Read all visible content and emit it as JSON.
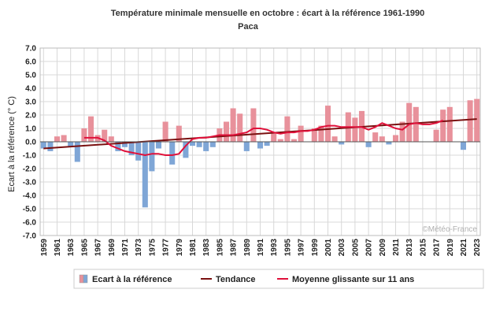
{
  "chart_data": {
    "type": "bar",
    "title": "Température minimale mensuelle en octobre : écart à la référence 1961-1990",
    "subtitle": "Paca",
    "ylabel": "Ecart à la référence (° C)",
    "xlabel": "",
    "ylim": [
      -7.0,
      7.0
    ],
    "y_ticks": [
      "7.0",
      "6.0",
      "5.0",
      "4.0",
      "3.0",
      "2.0",
      "1.0",
      "0.0",
      "-1.0",
      "-2.0",
      "-3.0",
      "-4.0",
      "-5.0",
      "-6.0",
      "-7.0"
    ],
    "x_ticks": [
      "1959",
      "1961",
      "1963",
      "1965",
      "1967",
      "1969",
      "1971",
      "1973",
      "1975",
      "1977",
      "1979",
      "1981",
      "1983",
      "1985",
      "1987",
      "1989",
      "1991",
      "1993",
      "1995",
      "1997",
      "1999",
      "2001",
      "2003",
      "2005",
      "2007",
      "2009",
      "2011",
      "2013",
      "2015",
      "2017",
      "2019",
      "2021",
      "2023"
    ],
    "grid": true,
    "colors": {
      "positive": "#e8919b",
      "negative": "#7fa6d6",
      "trend": "#7a1010",
      "moving_average": "#e0103a",
      "grid": "#d8d8d8"
    },
    "legend": {
      "position": "bottom",
      "items": [
        "Ecart à la référence",
        "Tendance",
        "Moyenne glissante sur 11 ans"
      ]
    },
    "credit": "©Météo-France",
    "years": [
      1959,
      1960,
      1961,
      1962,
      1963,
      1964,
      1965,
      1966,
      1967,
      1968,
      1969,
      1970,
      1971,
      1972,
      1973,
      1974,
      1975,
      1976,
      1977,
      1978,
      1979,
      1980,
      1981,
      1982,
      1983,
      1984,
      1985,
      1986,
      1987,
      1988,
      1989,
      1990,
      1991,
      1992,
      1993,
      1994,
      1995,
      1996,
      1997,
      1998,
      1999,
      2000,
      2001,
      2002,
      2003,
      2004,
      2005,
      2006,
      2007,
      2008,
      2009,
      2010,
      2011,
      2012,
      2013,
      2014,
      2015,
      2016,
      2017,
      2018,
      2019,
      2020,
      2021,
      2022,
      2023
    ],
    "series": [
      {
        "name": "Ecart à la référence",
        "values": [
          -0.5,
          -0.7,
          0.4,
          0.5,
          -0.4,
          -1.5,
          1.0,
          1.9,
          0.5,
          0.9,
          0.4,
          -0.7,
          -0.4,
          -1.0,
          -1.4,
          -4.9,
          -2.2,
          -0.5,
          1.5,
          -1.7,
          1.2,
          -1.2,
          -0.3,
          -0.4,
          -0.7,
          -0.4,
          1.0,
          1.5,
          2.5,
          2.1,
          -0.7,
          2.5,
          -0.5,
          -0.3,
          0.7,
          0.2,
          1.9,
          0.2,
          1.2,
          0.0,
          1.0,
          1.2,
          2.7,
          0.4,
          -0.2,
          2.2,
          1.8,
          2.3,
          -0.4,
          0.7,
          0.4,
          -0.2,
          0.5,
          1.5,
          2.9,
          2.6,
          0.0,
          0.0,
          0.9,
          2.4,
          2.6,
          0.0,
          -0.6,
          3.1,
          3.2
        ]
      },
      {
        "name": "Tendance",
        "values": [
          -0.5,
          1.7
        ]
      },
      {
        "name": "Moyenne glissante sur 11 ans",
        "values": [
          null,
          null,
          null,
          null,
          null,
          null,
          0.3,
          0.3,
          0.3,
          0.1,
          -0.3,
          -0.5,
          -0.7,
          -0.8,
          -0.9,
          -1.0,
          -0.9,
          -0.9,
          -1.0,
          -1.0,
          -0.9,
          -0.3,
          0.2,
          0.3,
          0.3,
          0.4,
          0.5,
          0.5,
          0.5,
          0.6,
          0.7,
          1.0,
          1.0,
          0.9,
          0.7,
          0.6,
          0.7,
          0.7,
          0.8,
          0.8,
          0.9,
          1.1,
          1.2,
          1.2,
          1.1,
          1.1,
          1.1,
          1.1,
          0.9,
          1.1,
          1.4,
          1.2,
          1.0,
          0.9,
          1.3,
          1.4,
          1.3,
          1.3,
          1.4,
          1.6,
          null,
          null,
          null,
          null,
          null
        ]
      }
    ]
  }
}
